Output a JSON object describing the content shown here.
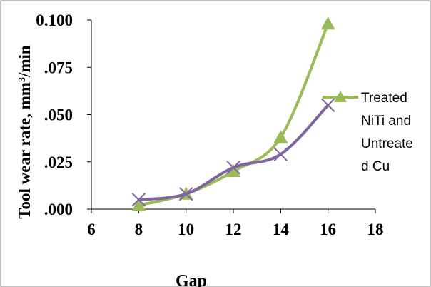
{
  "chart_data": {
    "type": "line",
    "xlabel": "Gap",
    "ylabel": "Tool wear rate, mm³/min",
    "ylabel_parts": {
      "main": "Tool wear rate, ",
      "unit_base": "mm",
      "unit_sup": "3",
      "unit_tail": "/min"
    },
    "xlim": [
      6,
      18
    ],
    "ylim": [
      0,
      0.1
    ],
    "x_ticks": [
      6,
      8,
      10,
      12,
      14,
      16,
      18
    ],
    "x_tick_labels": [
      "6",
      "8",
      "10",
      "12",
      "14",
      "16",
      "18"
    ],
    "y_ticks": [
      0,
      0.025,
      0.05,
      0.075,
      0.1
    ],
    "y_tick_labels": [
      ".000",
      ".025",
      ".050",
      ".075",
      "0.100"
    ],
    "grid": false,
    "legend_position": "right",
    "legend_lines": [
      "Treated",
      "NiTi and",
      "Untreate",
      "d Cu"
    ],
    "series": [
      {
        "name": "Treated NiTi and Untreated Cu",
        "color": "#9bbb59",
        "marker": "triangle",
        "x": [
          8,
          10,
          12,
          14,
          16
        ],
        "values": [
          0.002,
          0.008,
          0.02,
          0.038,
          0.098
        ]
      },
      {
        "color": "#8064a2",
        "marker": "x",
        "x": [
          8,
          10,
          12,
          14,
          16
        ],
        "values": [
          0.005,
          0.008,
          0.022,
          0.029,
          0.055
        ]
      }
    ]
  }
}
